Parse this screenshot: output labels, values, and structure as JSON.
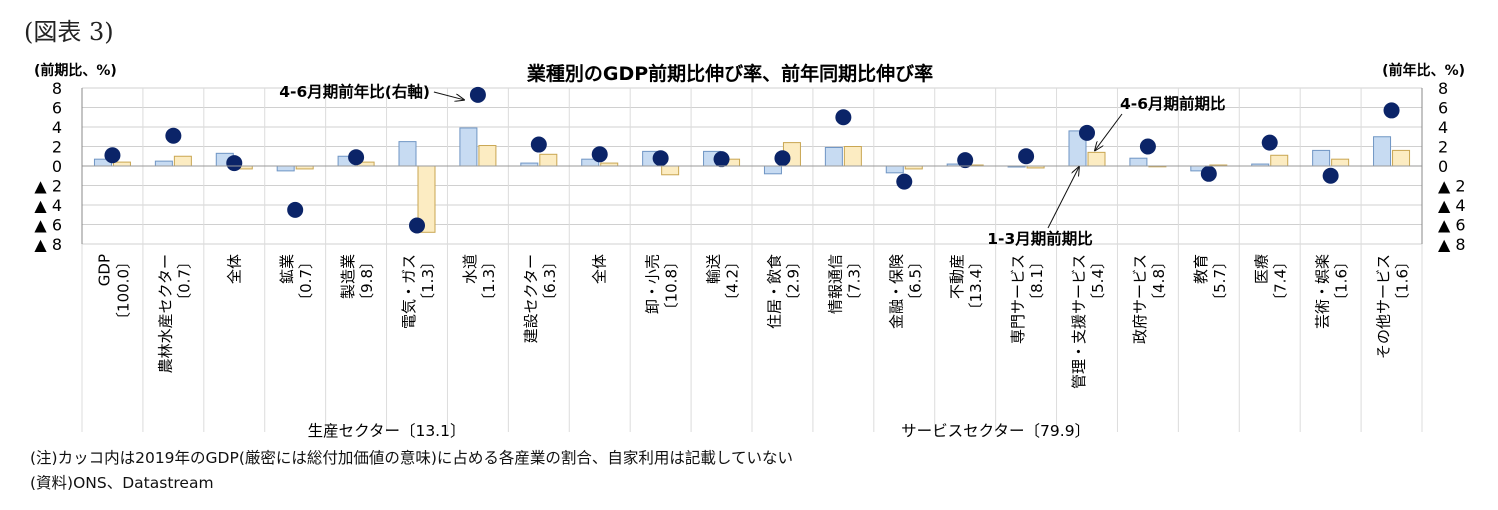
{
  "figure_label": "(図表 3)",
  "notes": {
    "note": "(注)カッコ内は2019年のGDP(厳密には総付加価値の意味)に占める各産業の割合、自家利用は記載していない",
    "source": "(資料)ONS、Datastream"
  },
  "colors": {
    "qoq_fill": "#c7dbf2",
    "qoq_stroke": "#6f95c4",
    "yoy_fill": "#fcecc2",
    "yoy_stroke": "#c9a652",
    "dot": "#0b2468",
    "grid": "#d0d0d0"
  },
  "chart_data": {
    "type": "bar",
    "title": "業種別のGDP前期比伸び率、前年同期比伸び率",
    "left_axis_label": "(前期比、%)",
    "right_axis_label": "(前年比、%)",
    "ylim": [
      -8,
      8
    ],
    "left_ticks": [
      "8",
      "6",
      "4",
      "2",
      "0",
      "▲ 2",
      "▲ 4",
      "▲ 6",
      "▲ 8"
    ],
    "right_ticks": [
      "8",
      "6",
      "4",
      "2",
      "0",
      "▲ 2",
      "▲ 4",
      "▲ 6",
      "▲ 8"
    ],
    "categories": [
      {
        "label": "GDP",
        "share": "〔100.0〕"
      },
      {
        "label": "農林水産セクター",
        "share": "〔0.7〕"
      },
      {
        "label": "全体",
        "share": ""
      },
      {
        "label": "鉱業",
        "share": "〔0.7〕"
      },
      {
        "label": "製造業",
        "share": "〔9.8〕"
      },
      {
        "label": "電気・ガス",
        "share": "〔1.3〕"
      },
      {
        "label": "水道",
        "share": "〔1.3〕"
      },
      {
        "label": "建設セクター",
        "share": "〔6.3〕"
      },
      {
        "label": "全体",
        "share": ""
      },
      {
        "label": "卸・小売",
        "share": "〔10.8〕"
      },
      {
        "label": "輸送",
        "share": "〔4.2〕"
      },
      {
        "label": "住居・飲食",
        "share": "〔2.9〕"
      },
      {
        "label": "情報通信",
        "share": "〔7.3〕"
      },
      {
        "label": "金融・保険",
        "share": "〔6.5〕"
      },
      {
        "label": "不動産",
        "share": "〔13.4〕"
      },
      {
        "label": "専門サービス",
        "share": "〔8.1〕"
      },
      {
        "label": "管理・支援サービス",
        "share": "〔5.4〕"
      },
      {
        "label": "政府サービス",
        "share": "〔4.8〕"
      },
      {
        "label": "教育",
        "share": "〔5.7〕"
      },
      {
        "label": "医療",
        "share": "〔7.4〕"
      },
      {
        "label": "芸術・娯楽",
        "share": "〔1.6〕"
      },
      {
        "label": "その他サービス",
        "share": "〔1.6〕"
      }
    ],
    "series": [
      {
        "name": "1-3月期前期比",
        "kind": "bar",
        "values": [
          0.7,
          0.5,
          1.3,
          -0.5,
          1.0,
          2.5,
          3.9,
          0.3,
          0.7,
          1.5,
          1.5,
          -0.8,
          1.9,
          -0.7,
          0.2,
          -0.1,
          3.6,
          0.8,
          -0.5,
          0.2,
          1.6,
          3.0
        ]
      },
      {
        "name": "4-6月期前期比",
        "kind": "bar",
        "values": [
          0.4,
          1.0,
          -0.3,
          -0.3,
          0.4,
          -6.8,
          2.1,
          1.2,
          0.3,
          -0.9,
          0.7,
          2.4,
          2.0,
          -0.3,
          0.1,
          -0.2,
          1.4,
          0.0,
          0.1,
          1.1,
          0.7,
          1.6
        ]
      },
      {
        "name": "4-6月期前年比(右軸)",
        "kind": "scatter",
        "values": [
          1.1,
          3.1,
          0.3,
          -4.5,
          0.9,
          -6.1,
          7.3,
          2.2,
          1.2,
          0.8,
          0.7,
          0.8,
          5.0,
          -1.6,
          0.6,
          1.0,
          3.4,
          2.0,
          -0.8,
          2.4,
          -1.0,
          5.7
        ]
      }
    ],
    "groups": [
      {
        "label": "生産セクター〔13.1〕",
        "from": 2,
        "to": 7
      },
      {
        "label": "サービスセクター〔79.9〕",
        "from": 8,
        "to": 21
      }
    ],
    "annotations": [
      {
        "text": "4-6月期前年比(右軸)",
        "target_index": 6
      },
      {
        "text": "4-6月期前期比",
        "target_index": 16
      },
      {
        "text": "1-3月期前期比",
        "target_index": 16
      }
    ]
  }
}
